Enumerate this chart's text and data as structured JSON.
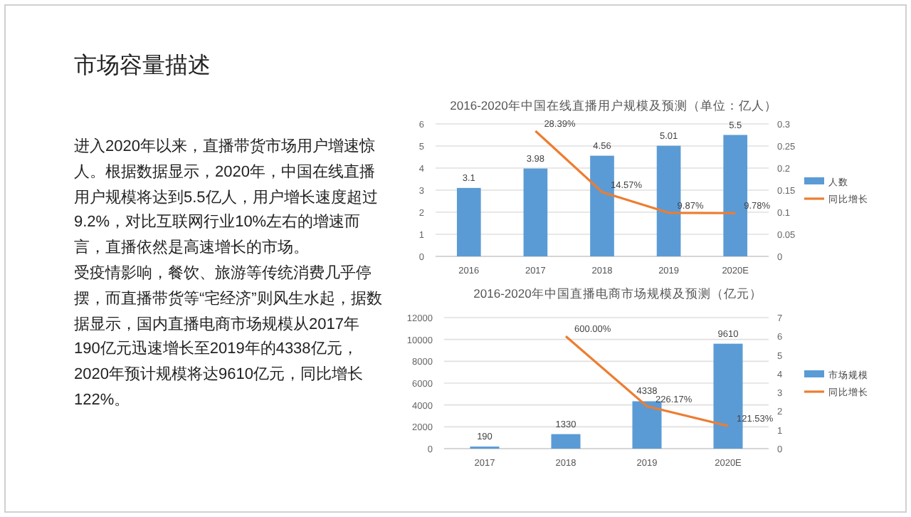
{
  "chart_data": [
    {
      "type": "other",
      "title": "市场容量描述",
      "annotations": [
        "进入2020年以来，直播带货市场用户增速惊人。根据数据显示，2020年，中国在线直播用户规模将达到5.5亿人，用户增长速度超过9.2%，对比互联网行业10%左右的增速而言，直播依然是高速增长的市场。",
        "受疫情影响，餐饮、旅游等传统消费几乎停摆，而直播带货等“宅经济”则风生水起，据数据显示，国内直播电商市场规模从2017年190亿元迅速增长至2019年的4338亿元，2020年预计规模将达9610亿元，同比增长122%。"
      ]
    },
    {
      "type": "bar",
      "title": "2016-2020年中国在线直播用户规模及预测（单位：亿人）",
      "categories": [
        "2016",
        "2017",
        "2018",
        "2019",
        "2020E"
      ],
      "series": [
        {
          "name": "人数",
          "type": "bar",
          "color": "#5b9bd5",
          "values": [
            3.1,
            3.98,
            4.56,
            5.01,
            5.5
          ],
          "value_labels": [
            "3.1",
            "3.98",
            "4.56",
            "5.01",
            "5.5"
          ]
        },
        {
          "name": "同比增长",
          "type": "line",
          "axis": "y2",
          "color": "#ed7d31",
          "values": [
            null,
            0.2839,
            0.1457,
            0.0987,
            0.0978
          ],
          "value_labels": [
            null,
            "28.39%",
            "14.57%",
            "9.87%",
            "9.78%"
          ]
        }
      ],
      "ylim": [
        0,
        6
      ],
      "yticks": [
        0,
        1,
        2,
        3,
        4,
        5,
        6
      ],
      "y2lim": [
        0,
        0.3
      ],
      "y2ticks": [
        0,
        0.05,
        0.1,
        0.15,
        0.2,
        0.25,
        0.3
      ],
      "grid": "y",
      "legend": "right"
    },
    {
      "type": "bar",
      "title": "2016-2020年中国直播电商市场规模及预测（亿元）",
      "categories": [
        "2017",
        "2018",
        "2019",
        "2020E"
      ],
      "series": [
        {
          "name": "市场规模",
          "type": "bar",
          "color": "#5b9bd5",
          "values": [
            190,
            1330,
            4338,
            9610
          ],
          "value_labels": [
            "190",
            "1330",
            "4338",
            "9610"
          ]
        },
        {
          "name": "同比增长",
          "type": "line",
          "axis": "y2",
          "color": "#ed7d31",
          "values": [
            null,
            6.0,
            2.2617,
            1.2153
          ],
          "value_labels": [
            null,
            "600.00%",
            "226.17%",
            "121.53%"
          ]
        }
      ],
      "ylim": [
        0,
        12000
      ],
      "yticks": [
        0,
        2000,
        4000,
        6000,
        8000,
        10000,
        12000
      ],
      "y2lim": [
        0,
        7
      ],
      "y2ticks": [
        0,
        1,
        2,
        3,
        4,
        5,
        6,
        7
      ],
      "grid": "y",
      "legend": "right"
    }
  ]
}
